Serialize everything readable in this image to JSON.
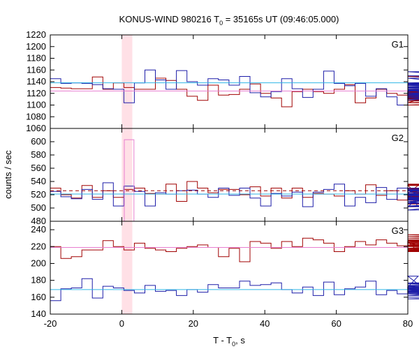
{
  "chart_data": {
    "type": "line",
    "title": {
      "main": "KONUS-WIND 980216 T",
      "sub": "0",
      "rest": " = 35165s UT (09:46:05.000)"
    },
    "xlabel": {
      "main": "T - T",
      "sub": "0",
      "rest": ", s"
    },
    "ylabel": "counts / sec",
    "xlim": [
      -20,
      80
    ],
    "x_ticks": [
      "-20",
      "0",
      "20",
      "40",
      "60",
      "80"
    ],
    "highlight_interval": [
      0,
      2.94
    ],
    "colors": {
      "red": "#a00000",
      "blue": "#1c1ca8",
      "cyan": "#2fb6e6",
      "pink": "#e87ed0",
      "shade": "#ffe0e6"
    },
    "panels": [
      {
        "label": "G1",
        "ylim": [
          1060,
          1220
        ],
        "y_ticks": [
          "1060",
          "1080",
          "1100",
          "1120",
          "1140",
          "1160",
          "1180",
          "1200",
          "1220"
        ],
        "bins_start": -20,
        "bin_width": 2.94,
        "series": [
          {
            "color": "red",
            "values": [
              1130,
              1129,
              1128,
              1128,
              1148,
              1127,
              1138,
              1130,
              1127,
              1127,
              1146,
              1142,
              1127,
              1115,
              1108,
              1134,
              1117,
              1118,
              1127,
              1136,
              1120,
              1112,
              1097,
              1123,
              1127,
              1123,
              1120,
              1127,
              1135,
              1104,
              1112,
              1127,
              1120,
              1117,
              1118,
              1114,
              1104,
              1119,
              1120,
              1117,
              1113,
              1107,
              1115,
              1104,
              1110,
              1123,
              1134,
              1126,
              1118,
              1115,
              1117,
              1113,
              1107,
              1113,
              1110,
              1111,
              1107,
              1117,
              1114,
              1110,
              1111,
              1113,
              1114,
              1115,
              1112,
              1111,
              1134,
              1127,
              1120,
              1100,
              1120,
              1126,
              1122,
              1149,
              1120,
              1118,
              1137,
              1127,
              1131,
              1127
            ]
          },
          {
            "color": "blue",
            "values": [
              1145,
              1137,
              1138,
              1137,
              1135,
              1128,
              1127,
              1104,
              1138,
              1160,
              1143,
              1127,
              1159,
              1140,
              1134,
              1145,
              1143,
              1134,
              1149,
              1121,
              1114,
              1123,
              1145,
              1128,
              1113,
              1127,
              1158,
              1137,
              1133,
              1137,
              1115,
              1128,
              1114,
              1100,
              1123,
              1126,
              1120,
              1118,
              1117,
              1131,
              1127,
              1126,
              1117,
              1125,
              1109,
              1130,
              1137,
              1146,
              1120,
              1118,
              1120,
              1126,
              1112,
              1120,
              1118,
              1127,
              1134,
              1127,
              1127,
              1138,
              1124,
              1114,
              1116,
              1138,
              1150,
              1135,
              1133,
              1114,
              1137,
              1138,
              1121,
              1118,
              1120,
              1136,
              1129,
              1121,
              1130,
              1157,
              1112,
              1120
            ]
          },
          {
            "color": "cyan",
            "flat": 1138
          },
          {
            "color": "pink",
            "flat": 1124
          }
        ]
      },
      {
        "label": "G2",
        "ylim": [
          480,
          620
        ],
        "y_ticks": [
          "480",
          "500",
          "520",
          "540",
          "560",
          "580",
          "600"
        ],
        "bins_start": -20,
        "bin_width": 2.94,
        "series": [
          {
            "color": "red",
            "values": [
              530,
              520,
              515,
              534,
              516,
              526,
              516,
              528,
              530,
              522,
              521,
              536,
              510,
              540,
              530,
              523,
              528,
              528,
              520,
              532,
              518,
              530,
              515,
              530,
              516,
              522,
              521,
              518,
              526,
              521,
              535,
              519,
              526,
              512,
              522,
              534,
              506,
              520,
              520,
              522,
              526,
              512,
              510,
              515,
              526,
              520,
              535,
              520,
              502,
              524,
              528,
              536,
              524,
              517,
              520,
              529,
              520,
              517,
              522,
              522,
              521,
              512,
              519,
              524,
              516,
              517,
              514,
              519,
              520,
              526,
              515,
              518,
              530,
              520,
              518,
              528,
              507,
              524,
              513,
              520
            ]
          },
          {
            "color": "blue",
            "values": [
              525,
              517,
              514,
              528,
              513,
              538,
              503,
              533,
              525,
              503,
              523,
              521,
              526,
              527,
              521,
              516,
              530,
              519,
              530,
              515,
              503,
              522,
              518,
              524,
              502,
              524,
              528,
              536,
              503,
              516,
              508,
              531,
              513,
              530,
              524,
              502,
              527,
              508,
              520,
              521,
              507,
              527,
              514,
              526,
              520,
              526,
              520,
              497,
              520,
              527,
              524,
              520,
              503,
              520,
              527,
              520,
              512,
              519,
              516,
              522,
              518,
              520,
              502,
              522,
              510,
              524,
              513,
              526,
              519,
              515,
              520,
              520,
              530,
              515,
              528,
              514,
              522,
              516,
              520,
              527
            ]
          },
          {
            "color": "pink",
            "spike": {
              "x0": 0.7,
              "x1": 3.4,
              "value": 603
            }
          },
          {
            "color": "cyan",
            "flat": 521
          },
          {
            "color": "red",
            "flat": 526,
            "dashed": true
          }
        ]
      },
      {
        "label": "G3",
        "ylim": [
          140,
          250
        ],
        "y_ticks": [
          "140",
          "160",
          "180",
          "200",
          "220",
          "240"
        ],
        "bins_start": -20,
        "bin_width": 2.94,
        "series": [
          {
            "color": "red",
            "values": [
              220,
              206,
              208,
              216,
              216,
              227,
              220,
              216,
              224,
              218,
              216,
              214,
              218,
              220,
              222,
              219,
              208,
              218,
              202,
              226,
              224,
              218,
              226,
              220,
              230,
              228,
              224,
              214,
              220,
              226,
              222,
              228,
              224,
              221,
              226,
              214,
              222,
              224,
              216,
              226,
              222,
              218,
              225,
              228,
              224,
              220,
              226,
              222,
              224,
              217,
              214,
              228,
              226,
              232,
              224,
              222,
              217,
              215,
              227,
              222,
              228,
              221,
              232,
              234,
              224,
              222,
              226,
              220,
              217,
              228,
              222,
              218,
              224,
              220,
              218,
              232,
              216,
              214,
              230,
              216
            ]
          },
          {
            "color": "blue",
            "values": [
              156,
              170,
              171,
              182,
              159,
              173,
              171,
              168,
              165,
              174,
              167,
              168,
              162,
              169,
              166,
              175,
              171,
              171,
              179,
              174,
              175,
              177,
              169,
              165,
              172,
              162,
              178,
              163,
              170,
              172,
              179,
              163,
              168,
              164,
              172,
              185,
              166,
              173,
              168,
              171,
              164,
              172,
              169,
              177,
              174,
              168,
              162,
              176,
              166,
              172,
              168,
              168,
              162,
              164,
              174,
              158,
              168,
              170,
              166,
              174,
              168,
              172,
              167,
              172,
              174,
              168,
              162,
              170,
              168,
              170,
              174,
              168,
              172,
              168,
              165,
              170,
              172,
              170,
              160,
              168
            ]
          },
          {
            "color": "pink",
            "flat": 219
          },
          {
            "color": "cyan",
            "flat": 169
          }
        ]
      }
    ]
  }
}
